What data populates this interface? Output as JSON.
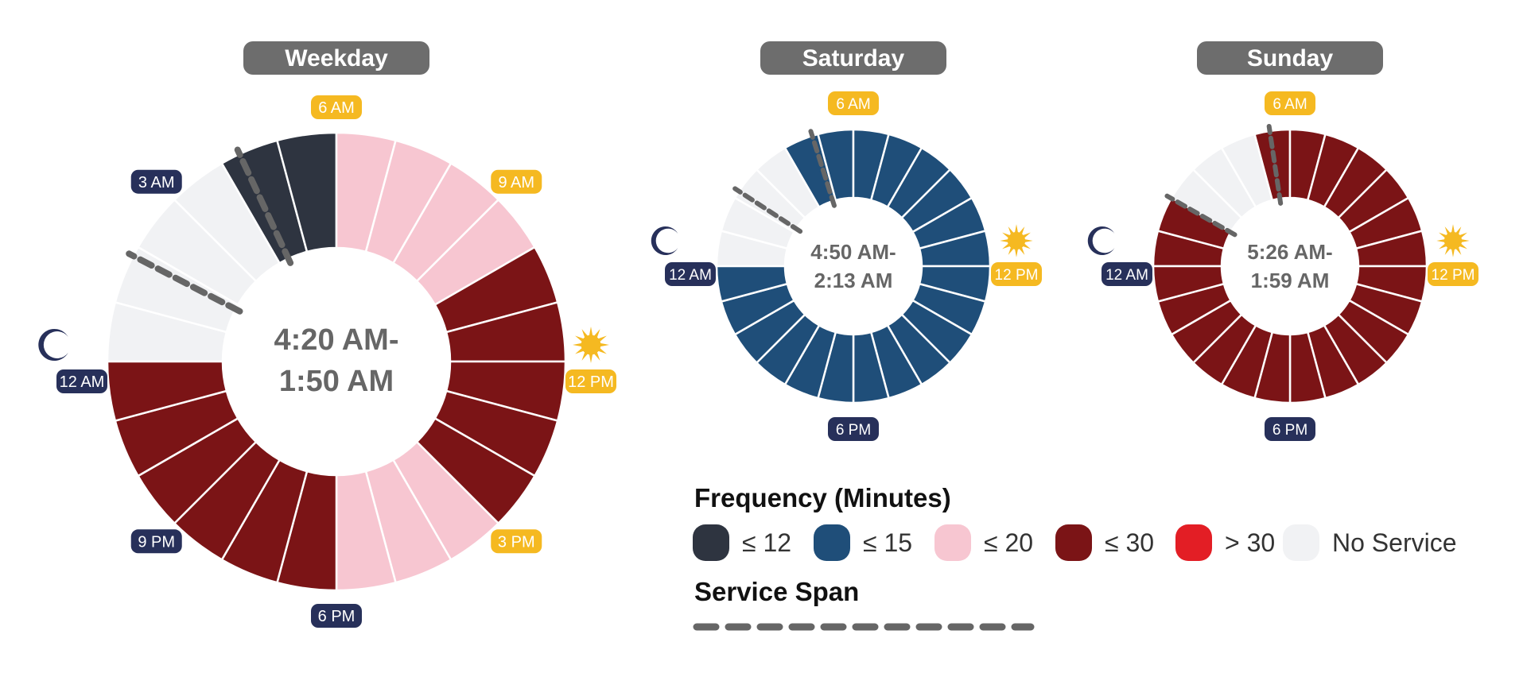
{
  "charts": [
    {
      "title": "Weekday",
      "span_label": [
        "4:20 AM-",
        "1:50 AM"
      ],
      "hour_levels": [
        "none",
        "none",
        "none",
        "none",
        "le12",
        "le12",
        "le20",
        "le20",
        "le20",
        "le20",
        "le30",
        "le30",
        "le30",
        "le30",
        "le30",
        "le20",
        "le20",
        "le20",
        "le30",
        "le30",
        "le30",
        "le30",
        "le30",
        "le30"
      ],
      "span_start_hour": 4.333,
      "span_end_hour": 1.833,
      "labels": [
        {
          "text": "6 AM",
          "type": "day",
          "hour": 6
        },
        {
          "text": "9 AM",
          "type": "day",
          "hour": 9
        },
        {
          "text": "12 PM",
          "type": "day",
          "hour": 12
        },
        {
          "text": "3 PM",
          "type": "day",
          "hour": 15
        },
        {
          "text": "6 PM",
          "type": "night",
          "hour": 18
        },
        {
          "text": "9 PM",
          "type": "night",
          "hour": 21
        },
        {
          "text": "12 AM",
          "type": "night",
          "hour": 0
        },
        {
          "text": "3 AM",
          "type": "night",
          "hour": 3
        }
      ],
      "sun_icon_hour": 12,
      "moon_icon_hour": 0
    },
    {
      "title": "Saturday",
      "span_label": [
        "4:50 AM-",
        "2:13 AM"
      ],
      "hour_levels": [
        "none",
        "none",
        "none",
        "none",
        "le15",
        "le15",
        "le15",
        "le15",
        "le15",
        "le15",
        "le15",
        "le15",
        "le15",
        "le15",
        "le15",
        "le15",
        "le15",
        "le15",
        "le15",
        "le15",
        "le15",
        "le15",
        "le15",
        "le15"
      ],
      "span_start_hour": 4.833,
      "span_end_hour": 2.217,
      "labels": [
        {
          "text": "6 AM",
          "type": "day",
          "hour": 6
        },
        {
          "text": "12 PM",
          "type": "day",
          "hour": 12
        },
        {
          "text": "6 PM",
          "type": "night",
          "hour": 18
        },
        {
          "text": "12 AM",
          "type": "night",
          "hour": 0
        }
      ],
      "sun_icon_hour": 12,
      "moon_icon_hour": 0
    },
    {
      "title": "Sunday",
      "span_label": [
        "5:26 AM-",
        "1:59 AM"
      ],
      "hour_levels": [
        "le30",
        "le30",
        "none",
        "none",
        "none",
        "le30",
        "le30",
        "le30",
        "le30",
        "le30",
        "le30",
        "le30",
        "le30",
        "le30",
        "le30",
        "le30",
        "le30",
        "le30",
        "le30",
        "le30",
        "le30",
        "le30",
        "le30",
        "le30"
      ],
      "span_start_hour": 5.433,
      "span_end_hour": 1.983,
      "labels": [
        {
          "text": "6 AM",
          "type": "day",
          "hour": 6
        },
        {
          "text": "12 PM",
          "type": "day",
          "hour": 12
        },
        {
          "text": "6 PM",
          "type": "night",
          "hour": 18
        },
        {
          "text": "12 AM",
          "type": "night",
          "hour": 0
        }
      ],
      "sun_icon_hour": 12,
      "moon_icon_hour": 0
    }
  ],
  "legend": {
    "title": "Frequency (Minutes)",
    "items": [
      {
        "key": "le12",
        "label": "≤ 12",
        "color": "#2e3440"
      },
      {
        "key": "le15",
        "label": "≤ 15",
        "color": "#1f4e79"
      },
      {
        "key": "le20",
        "label": "≤ 20",
        "color": "#f7c6d1"
      },
      {
        "key": "le30",
        "label": "≤ 30",
        "color": "#7b1416"
      },
      {
        "key": "gt30",
        "label": "> 30",
        "color": "#e31e25"
      },
      {
        "key": "none",
        "label": "No Service",
        "color": "#f1f2f4"
      }
    ],
    "span_title": "Service Span"
  },
  "colors": {
    "title_pill": "#6d6d6d",
    "center_text": "#666666",
    "day_badge": "#f5b921",
    "night_badge": "#27305a",
    "sun": "#f5b921",
    "moon": "#27305a",
    "span_line": "#666666"
  }
}
